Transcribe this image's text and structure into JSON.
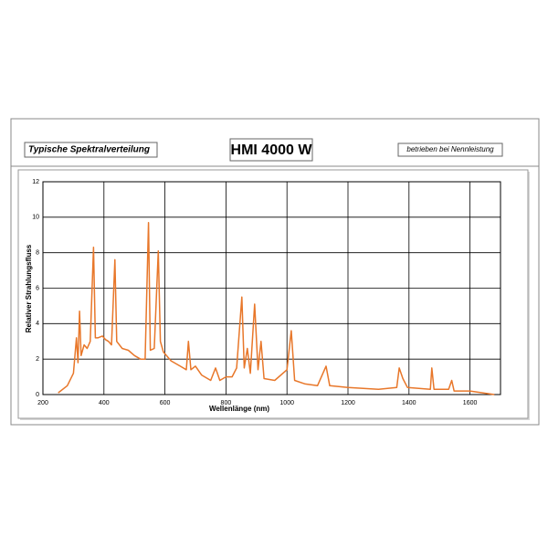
{
  "chart_data": {
    "type": "line",
    "subtitle": "Typische Spektralverteilung",
    "title": "HMI 4000 W",
    "annotation": "betrieben bei Nennleistung",
    "x_label": "Wellenlänge (nm)",
    "y_label": "Relativer Strahlungsfluss",
    "x": [
      250,
      280,
      300,
      310,
      315,
      320,
      325,
      335,
      345,
      355,
      366,
      372,
      380,
      395,
      405,
      415,
      425,
      436,
      442,
      460,
      480,
      500,
      520,
      535,
      546,
      552,
      565,
      578,
      585,
      595,
      620,
      650,
      670,
      677,
      685,
      700,
      720,
      750,
      766,
      780,
      800,
      820,
      835,
      852,
      860,
      870,
      880,
      894,
      905,
      915,
      925,
      960,
      1000,
      1014,
      1025,
      1060,
      1100,
      1128,
      1140,
      1200,
      1300,
      1360,
      1368,
      1380,
      1395,
      1470,
      1475,
      1482,
      1530,
      1540,
      1548,
      1600,
      1680
    ],
    "values": [
      0.1,
      0.5,
      1.2,
      3.2,
      1.8,
      4.7,
      2.2,
      2.8,
      2.6,
      3.0,
      8.3,
      3.2,
      3.2,
      3.3,
      3.1,
      3.0,
      2.8,
      7.6,
      3.0,
      2.6,
      2.5,
      2.2,
      2.0,
      2.0,
      9.7,
      2.5,
      2.6,
      8.1,
      3.0,
      2.4,
      1.9,
      1.6,
      1.4,
      3.0,
      1.4,
      1.6,
      1.1,
      0.8,
      1.5,
      0.8,
      1.0,
      1.0,
      1.5,
      5.5,
      1.5,
      2.6,
      1.2,
      5.1,
      1.4,
      3.0,
      0.9,
      0.8,
      1.4,
      3.6,
      0.8,
      0.6,
      0.5,
      1.6,
      0.5,
      0.4,
      0.3,
      0.4,
      1.5,
      0.9,
      0.4,
      0.3,
      1.5,
      0.3,
      0.3,
      0.8,
      0.2,
      0.2,
      0.0
    ],
    "color": "#e8772a",
    "xlim": [
      200,
      1700
    ],
    "ylim": [
      0,
      12
    ],
    "xticks": [
      200,
      400,
      600,
      800,
      1000,
      1200,
      1400,
      1600
    ],
    "yticks": [
      0,
      2,
      4,
      6,
      8,
      10,
      12
    ],
    "grid": true
  }
}
